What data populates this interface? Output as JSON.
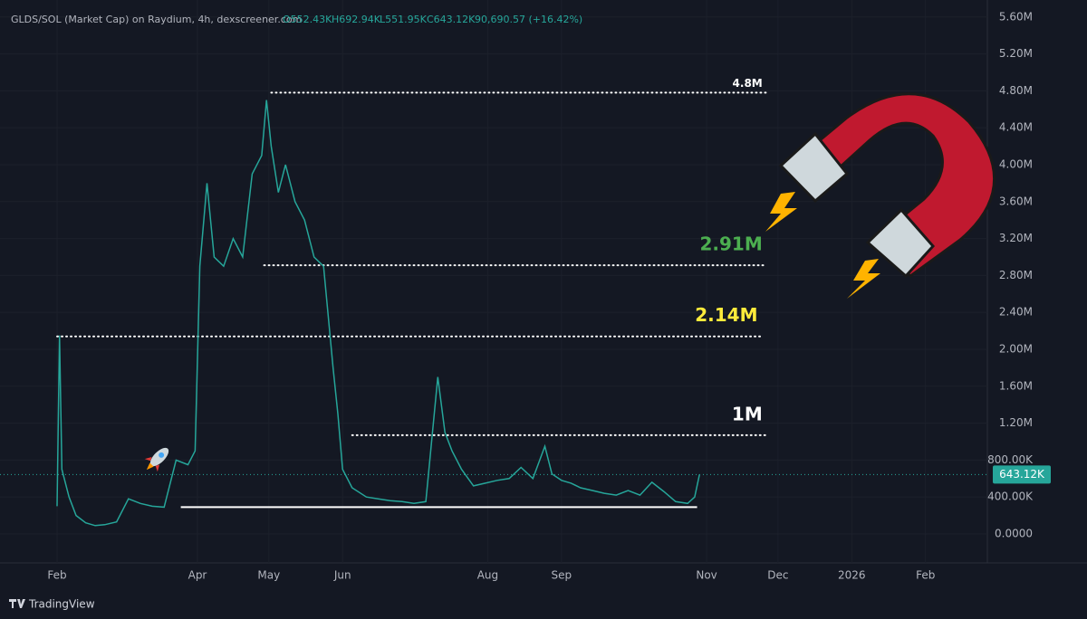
{
  "chart_data": {
    "type": "line",
    "title": "GLDS/SOL (Market Cap) on Raydium, 4h, dexscreener.com",
    "ohlc": [
      "O552.43K",
      "H692.94K",
      "L551.95K",
      "C643.12K"
    ],
    "change": "90,690.57 (+16.42%)",
    "brand": "TradingView",
    "xlim": [
      -24,
      391
    ],
    "xticks": [
      {
        "value": 0,
        "label": "Feb"
      },
      {
        "value": 59,
        "label": "Apr"
      },
      {
        "value": 89,
        "label": "May"
      },
      {
        "value": 120,
        "label": "Jun"
      },
      {
        "value": 181,
        "label": "Aug"
      },
      {
        "value": 212,
        "label": "Sep"
      },
      {
        "value": 273,
        "label": "Nov"
      },
      {
        "value": 303,
        "label": "Dec"
      },
      {
        "value": 334,
        "label": "2026"
      },
      {
        "value": 365,
        "label": "Feb"
      }
    ],
    "ylim": [
      -314000,
      5784000
    ],
    "yticks": [
      {
        "value": 0,
        "label": "0.0000"
      },
      {
        "value": 400000,
        "label": "400.00K"
      },
      {
        "value": 800000,
        "label": "800.00K"
      },
      {
        "value": 1200000,
        "label": "1.20M"
      },
      {
        "value": 1600000,
        "label": "1.60M"
      },
      {
        "value": 2000000,
        "label": "2.00M"
      },
      {
        "value": 2400000,
        "label": "2.40M"
      },
      {
        "value": 2800000,
        "label": "2.80M"
      },
      {
        "value": 3200000,
        "label": "3.20M"
      },
      {
        "value": 3600000,
        "label": "3.60M"
      },
      {
        "value": 4000000,
        "label": "4.00M"
      },
      {
        "value": 4400000,
        "label": "4.40M"
      },
      {
        "value": 4800000,
        "label": "4.80M"
      },
      {
        "value": 5200000,
        "label": "5.20M"
      },
      {
        "value": 5600000,
        "label": "5.60M"
      }
    ],
    "grid": true,
    "series": [
      {
        "color": "#26a69a",
        "x": [
          0,
          1,
          2,
          5,
          8,
          12,
          16,
          20,
          25,
          30,
          35,
          40,
          45,
          50,
          55,
          58,
          60,
          63,
          66,
          70,
          74,
          78,
          82,
          86,
          88,
          90,
          93,
          96,
          100,
          104,
          108,
          112,
          116,
          118,
          120,
          124,
          130,
          135,
          140,
          145,
          150,
          155,
          160,
          163,
          166,
          170,
          175,
          180,
          185,
          190,
          195,
          200,
          205,
          208,
          212,
          216,
          220,
          225,
          230,
          235,
          240,
          245,
          250,
          255,
          260,
          265,
          268,
          270
        ],
        "values": [
          300000,
          2150000,
          700000,
          400000,
          200000,
          120000,
          90000,
          100000,
          130000,
          380000,
          330000,
          300000,
          290000,
          800000,
          750000,
          900000,
          2900000,
          3800000,
          3000000,
          2900000,
          3200000,
          3000000,
          3900000,
          4100000,
          4700000,
          4200000,
          3700000,
          4000000,
          3600000,
          3400000,
          3000000,
          2900000,
          1800000,
          1300000,
          700000,
          500000,
          400000,
          380000,
          360000,
          350000,
          330000,
          350000,
          1700000,
          1100000,
          900000,
          700000,
          520000,
          550000,
          580000,
          600000,
          720000,
          600000,
          950000,
          650000,
          580000,
          550000,
          500000,
          470000,
          440000,
          420000,
          470000,
          420000,
          560000,
          460000,
          350000,
          330000,
          400000,
          643120
        ]
      }
    ],
    "last_price": 643120,
    "last_price_label": "643.12K",
    "levels": [
      {
        "label": "4.8M",
        "value": 4780000,
        "from": 90,
        "to": 298,
        "color": "#ffffff"
      },
      {
        "label": "2.91M",
        "value": 2910000,
        "from": 87,
        "to": 298,
        "color": "#4caf50"
      },
      {
        "label": "2.14M",
        "value": 2140000,
        "from": 0,
        "to": 296,
        "color": "#ffeb3b"
      },
      {
        "label": "1M",
        "value": 1070000,
        "from": 124,
        "to": 298,
        "color": "#ffffff"
      }
    ],
    "support": {
      "value": 290000,
      "from": 52,
      "to": 269
    }
  }
}
